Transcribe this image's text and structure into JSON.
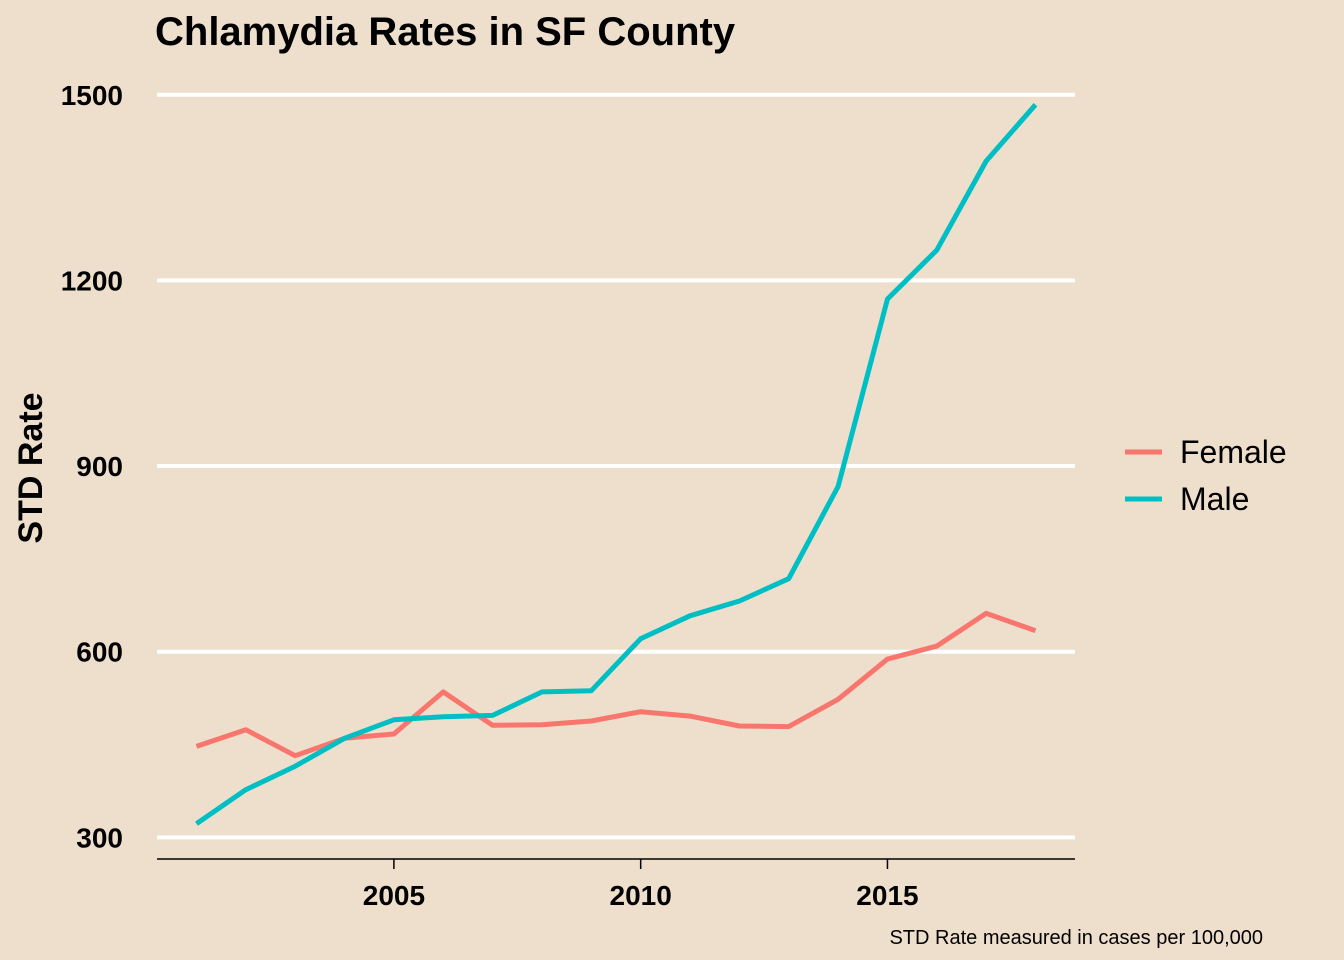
{
  "chart_data": {
    "type": "line",
    "title": "Chlamydia Rates in SF County",
    "xlabel": "",
    "ylabel": "STD Rate",
    "caption": "STD Rate measured in cases per 100,000",
    "x": [
      2001,
      2002,
      2003,
      2004,
      2005,
      2006,
      2007,
      2008,
      2009,
      2010,
      2011,
      2012,
      2013,
      2014,
      2015,
      2016,
      2017,
      2018
    ],
    "series": [
      {
        "name": "Female",
        "color": "#f8766d",
        "values": [
          447,
          474,
          432,
          460,
          467,
          535,
          481,
          482,
          488,
          503,
          496,
          480,
          479,
          523,
          588,
          609,
          662,
          634
        ]
      },
      {
        "name": "Male",
        "color": "#00bfc4",
        "values": [
          322,
          377,
          415,
          460,
          490,
          495,
          497,
          535,
          537,
          621,
          658,
          682,
          718,
          867,
          1170,
          1249,
          1393,
          1484
        ]
      }
    ],
    "xticks": [
      2005,
      2010,
      2015
    ],
    "yticks": [
      300,
      600,
      900,
      1200,
      1500
    ],
    "xlim": [
      2000.2,
      2018.8
    ],
    "ylim": [
      265,
      1540
    ],
    "grid": "horizontal",
    "legend_position": "right"
  }
}
